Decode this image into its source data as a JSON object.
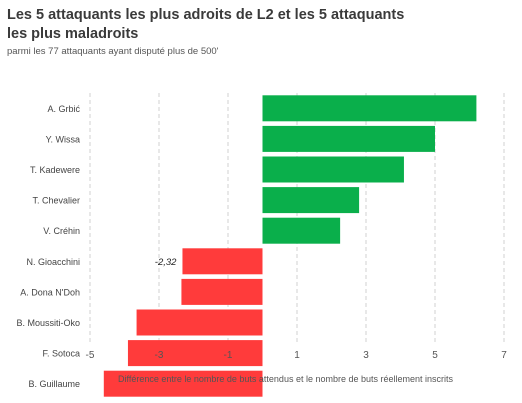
{
  "header": {
    "title": "Les 5 attaquants les plus adroits de L2 et les 5 attaquants les plus maladroits",
    "subtitle": "parmi les 77 attaquants ayant disputé plus de 500'"
  },
  "chart_data": {
    "type": "bar",
    "orientation": "horizontal",
    "categories": [
      "A. Grbić",
      "Y. Wissa",
      "T. Kadewere",
      "T. Chevalier",
      "V. Créhin",
      "N. Gioacchini",
      "A. Dona N'Doh",
      "B. Moussiti-Oko",
      "F. Sotoca",
      "B. Guillaume"
    ],
    "values": [
      6.2,
      5.0,
      4.1,
      2.8,
      2.25,
      -2.32,
      -2.35,
      -3.65,
      -3.9,
      -4.6
    ],
    "colors": [
      "#0aaf4b",
      "#0aaf4b",
      "#0aaf4b",
      "#0aaf4b",
      "#0aaf4b",
      "#ff3b3b",
      "#ff3b3b",
      "#ff3b3b",
      "#ff3b3b",
      "#ff3b3b"
    ],
    "data_labels": [
      {
        "index": 5,
        "text": "-2,32"
      }
    ],
    "xlim": [
      -5,
      7
    ],
    "xticks": [
      -5,
      -3,
      -1,
      1,
      3,
      5,
      7
    ],
    "xlabel": "Différence entre le nombre de buts attendus et le nombre de buts réellement inscrits",
    "ylabel": "",
    "grid": "vertical dashed"
  }
}
